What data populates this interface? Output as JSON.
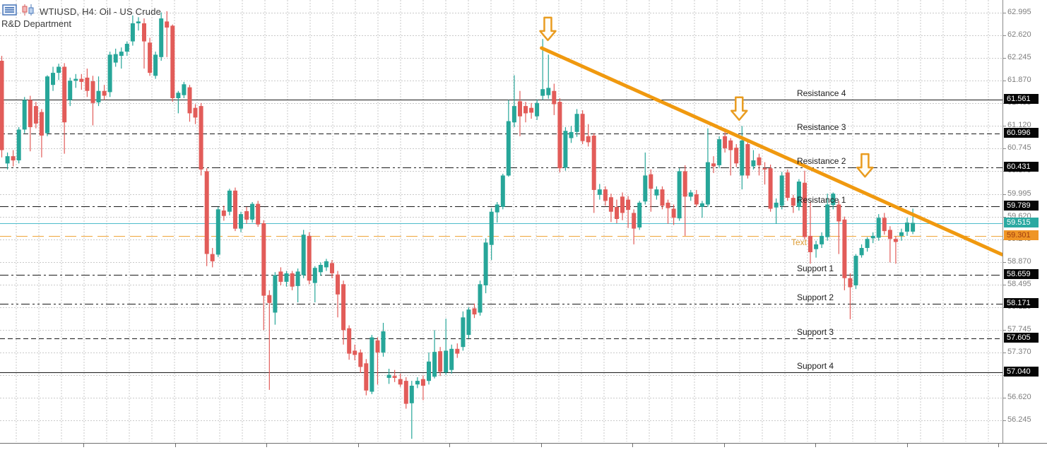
{
  "window": {
    "title": "WTIUSD, H4: Oil - US Crude",
    "subtitle": "R&D Department",
    "toolbar_icons": [
      "list-panel-icon",
      "candlestick-chart-icon"
    ]
  },
  "colors": {
    "background": "#ffffff",
    "grid": "#c9c9c9",
    "candle_up": "#27a699",
    "candle_down": "#e25c59",
    "level_line": "#1a1a1a",
    "axis_text": "#7e7e7e",
    "axis_black_bg": "#060606",
    "axis_black_fg": "#ffffff",
    "current_price_line": "#4fbccb",
    "current_price_bg": "#2aa9a1",
    "current_price_fg": "#ffffff",
    "order_line": "#f0a53a",
    "order_bg": "#ef9526",
    "order_fg": "#a03c10",
    "trendline": "#f0990f",
    "arrow_stroke": "#e99c20",
    "arrow_fill": "#fffdf6",
    "text_annotation": "#dd9c33"
  },
  "price_axis": {
    "ticks": [
      "62.995",
      "62.620",
      "62.245",
      "61.870",
      "61.495",
      "61.120",
      "60.745",
      "60.370",
      "59.995",
      "59.620",
      "59.245",
      "58.870",
      "58.495",
      "58.120",
      "57.745",
      "57.370",
      "56.995",
      "56.620",
      "56.245"
    ],
    "highlighted": [
      {
        "text": "61.561",
        "price": 61.561,
        "kind": "level"
      },
      {
        "text": "60.996",
        "price": 60.996,
        "kind": "level"
      },
      {
        "text": "60.431",
        "price": 60.431,
        "kind": "level"
      },
      {
        "text": "59.789",
        "price": 59.789,
        "kind": "level"
      },
      {
        "text": "59.515",
        "price": 59.515,
        "kind": "current"
      },
      {
        "text": "59.301",
        "price": 59.301,
        "kind": "order"
      },
      {
        "text": "58.659",
        "price": 58.659,
        "kind": "level"
      },
      {
        "text": "58.171",
        "price": 58.171,
        "kind": "level"
      },
      {
        "text": "57.605",
        "price": 57.605,
        "kind": "level"
      },
      {
        "text": "57.040",
        "price": 57.04,
        "kind": "level"
      }
    ]
  },
  "chart_data": {
    "type": "candlestick",
    "symbol": "WTIUSD",
    "timeframe": "H4",
    "description": "Oil - US Crude",
    "grid_step": 0.375,
    "ylim": [
      55.9,
      63.2
    ],
    "current_price": 59.515,
    "levels": [
      {
        "label": "Resistance 4",
        "price": 61.561,
        "style": "solid"
      },
      {
        "label": "Resistance 3",
        "price": 60.996,
        "style": "dash"
      },
      {
        "label": "Resistance 2",
        "price": 60.431,
        "style": "dashdotdot"
      },
      {
        "label": "Resistance 1",
        "price": 59.789,
        "style": "dashdot"
      },
      {
        "label": "Support 1",
        "price": 58.659,
        "style": "dashdot"
      },
      {
        "label": "Support 2",
        "price": 58.171,
        "style": "dashdotdot"
      },
      {
        "label": "Support 3",
        "price": 57.605,
        "style": "dash"
      },
      {
        "label": "Support 4",
        "price": 57.04,
        "style": "solid"
      }
    ],
    "current_price_line": {
      "price": 59.515,
      "style": "solid"
    },
    "order_line": {
      "price": 59.301,
      "style": "dash",
      "label": "Text"
    },
    "trendline": {
      "from": {
        "index": 94.8,
        "price": 62.41
      },
      "to": {
        "index": 175.7,
        "price": 58.99
      }
    },
    "arrows": [
      {
        "index": 95.9,
        "tip_price": 62.54
      },
      {
        "index": 129.5,
        "tip_price": 61.22
      },
      {
        "index": 151.6,
        "tip_price": 60.28
      }
    ],
    "candles": [
      [
        62.2,
        62.28,
        60.6,
        60.72
      ],
      [
        60.5,
        60.68,
        60.4,
        60.62
      ],
      [
        60.62,
        60.72,
        60.45,
        60.55
      ],
      [
        60.55,
        61.1,
        60.5,
        61.06
      ],
      [
        61.06,
        61.6,
        61.0,
        61.55
      ],
      [
        61.55,
        61.62,
        60.7,
        61.1
      ],
      [
        61.45,
        61.52,
        61.08,
        61.16
      ],
      [
        61.35,
        61.4,
        60.6,
        60.96
      ],
      [
        61.0,
        61.96,
        60.95,
        61.94
      ],
      [
        61.8,
        62.1,
        61.7,
        62.0
      ],
      [
        62.0,
        62.15,
        61.88,
        62.1
      ],
      [
        62.1,
        62.16,
        60.66,
        61.18
      ],
      [
        61.55,
        61.92,
        61.45,
        61.87
      ],
      [
        61.87,
        61.98,
        61.75,
        61.9
      ],
      [
        61.9,
        61.98,
        61.72,
        61.85
      ],
      [
        61.92,
        62.07,
        61.6,
        61.7
      ],
      [
        61.86,
        61.95,
        61.13,
        61.5
      ],
      [
        61.51,
        61.94,
        61.45,
        61.7
      ],
      [
        61.7,
        61.8,
        61.55,
        61.62
      ],
      [
        61.68,
        62.35,
        61.6,
        62.3
      ],
      [
        62.17,
        62.4,
        62.1,
        62.31
      ],
      [
        62.28,
        62.42,
        62.07,
        62.35
      ],
      [
        62.35,
        62.52,
        62.28,
        62.48
      ],
      [
        62.52,
        62.95,
        62.45,
        62.82
      ],
      [
        62.82,
        62.92,
        62.7,
        62.85
      ],
      [
        62.82,
        62.9,
        62.07,
        62.52
      ],
      [
        62.5,
        62.58,
        61.95,
        62.0
      ],
      [
        61.95,
        62.35,
        61.9,
        62.3
      ],
      [
        62.26,
        63.0,
        62.2,
        62.9
      ],
      [
        62.85,
        63.02,
        62.26,
        62.75
      ],
      [
        62.78,
        62.8,
        61.52,
        61.58
      ],
      [
        61.58,
        61.7,
        61.33,
        61.67
      ],
      [
        61.63,
        61.85,
        61.58,
        61.81
      ],
      [
        61.76,
        61.8,
        61.19,
        61.33
      ],
      [
        61.42,
        61.48,
        61.15,
        61.26
      ],
      [
        61.45,
        61.5,
        60.3,
        60.4
      ],
      [
        60.37,
        60.42,
        58.8,
        59.0
      ],
      [
        59.0,
        59.1,
        58.78,
        58.88
      ],
      [
        58.99,
        59.78,
        58.95,
        59.74
      ],
      [
        59.72,
        59.8,
        59.55,
        59.63
      ],
      [
        59.7,
        60.08,
        59.64,
        60.05
      ],
      [
        60.05,
        60.1,
        59.38,
        59.42
      ],
      [
        59.42,
        59.7,
        59.36,
        59.66
      ],
      [
        59.71,
        59.78,
        59.5,
        59.57
      ],
      [
        59.57,
        59.86,
        59.52,
        59.83
      ],
      [
        59.83,
        59.88,
        59.45,
        59.49
      ],
      [
        59.51,
        59.56,
        57.74,
        58.31
      ],
      [
        58.32,
        58.4,
        56.75,
        58.19
      ],
      [
        58.03,
        58.7,
        57.83,
        58.65
      ],
      [
        58.71,
        58.78,
        58.48,
        58.54
      ],
      [
        58.54,
        58.72,
        58.46,
        58.68
      ],
      [
        58.68,
        58.72,
        58.4,
        58.46
      ],
      [
        58.47,
        58.76,
        58.2,
        58.71
      ],
      [
        58.65,
        59.4,
        58.6,
        59.32
      ],
      [
        59.3,
        59.36,
        58.5,
        58.56
      ],
      [
        58.52,
        58.8,
        58.2,
        58.77
      ],
      [
        58.7,
        58.86,
        58.64,
        58.82
      ],
      [
        58.78,
        58.92,
        58.72,
        58.88
      ],
      [
        58.85,
        58.9,
        58.6,
        58.68
      ],
      [
        58.66,
        58.72,
        57.95,
        58.33
      ],
      [
        58.5,
        58.56,
        57.5,
        57.74
      ],
      [
        57.77,
        57.82,
        57.25,
        57.35
      ],
      [
        57.4,
        57.5,
        57.24,
        57.33
      ],
      [
        57.37,
        57.42,
        57.03,
        57.13
      ],
      [
        57.19,
        57.26,
        56.66,
        56.74
      ],
      [
        56.72,
        57.66,
        56.68,
        57.62
      ],
      [
        57.57,
        57.62,
        56.84,
        57.37
      ],
      [
        57.37,
        57.86,
        57.3,
        57.72
      ],
      [
        56.95,
        57.1,
        56.85,
        57.0
      ],
      [
        56.98,
        57.08,
        56.88,
        56.95
      ],
      [
        56.93,
        57.02,
        56.8,
        56.84
      ],
      [
        56.9,
        56.96,
        56.44,
        56.52
      ],
      [
        56.53,
        56.9,
        55.94,
        56.82
      ],
      [
        56.84,
        56.96,
        56.78,
        56.9
      ],
      [
        56.93,
        56.99,
        56.58,
        56.82
      ],
      [
        56.9,
        57.37,
        56.84,
        57.22
      ],
      [
        56.97,
        57.74,
        56.94,
        57.38
      ],
      [
        57.39,
        57.46,
        56.98,
        57.05
      ],
      [
        57.04,
        57.93,
        57.0,
        57.4
      ],
      [
        57.08,
        57.5,
        57.02,
        57.43
      ],
      [
        57.43,
        57.52,
        57.28,
        57.35
      ],
      [
        57.46,
        58.05,
        57.4,
        57.95
      ],
      [
        57.66,
        58.12,
        57.6,
        58.08
      ],
      [
        58.1,
        58.18,
        57.94,
        58.0
      ],
      [
        58.03,
        58.56,
        57.98,
        58.5
      ],
      [
        58.48,
        59.26,
        58.35,
        59.19
      ],
      [
        59.15,
        59.76,
        58.9,
        59.7
      ],
      [
        59.69,
        59.86,
        59.52,
        59.82
      ],
      [
        59.78,
        60.33,
        59.74,
        60.3
      ],
      [
        60.3,
        61.55,
        60.28,
        61.2
      ],
      [
        61.18,
        61.96,
        61.1,
        61.45
      ],
      [
        61.53,
        61.7,
        60.95,
        61.28
      ],
      [
        61.45,
        61.52,
        61.18,
        61.33
      ],
      [
        61.42,
        61.5,
        61.24,
        61.34
      ],
      [
        61.28,
        61.56,
        61.22,
        61.5
      ],
      [
        61.62,
        62.56,
        61.55,
        61.73
      ],
      [
        61.63,
        62.3,
        61.57,
        61.75
      ],
      [
        61.7,
        61.82,
        61.3,
        61.48
      ],
      [
        61.52,
        61.58,
        60.35,
        60.42
      ],
      [
        60.43,
        61.1,
        60.38,
        61.04
      ],
      [
        60.92,
        61.12,
        60.84,
        61.02
      ],
      [
        61.02,
        61.4,
        60.94,
        61.32
      ],
      [
        61.32,
        61.38,
        60.82,
        60.87
      ],
      [
        60.95,
        61.15,
        60.78,
        60.85
      ],
      [
        60.96,
        61.0,
        59.68,
        60.06
      ],
      [
        59.98,
        60.16,
        59.9,
        60.07
      ],
      [
        60.07,
        60.12,
        59.8,
        59.88
      ],
      [
        59.94,
        60.0,
        59.53,
        59.7
      ],
      [
        59.78,
        59.9,
        59.51,
        59.58
      ],
      [
        59.95,
        60.02,
        59.56,
        59.68
      ],
      [
        59.9,
        59.96,
        59.43,
        59.73
      ],
      [
        59.68,
        59.74,
        59.16,
        59.42
      ],
      [
        59.44,
        59.88,
        59.4,
        59.85
      ],
      [
        59.87,
        60.68,
        59.82,
        60.3
      ],
      [
        60.32,
        60.4,
        59.7,
        60.08
      ],
      [
        59.97,
        60.12,
        59.9,
        60.07
      ],
      [
        60.07,
        60.12,
        59.74,
        59.8
      ],
      [
        59.85,
        59.9,
        59.5,
        59.76
      ],
      [
        59.75,
        59.82,
        59.48,
        59.6
      ],
      [
        59.59,
        60.42,
        59.55,
        60.37
      ],
      [
        60.37,
        60.47,
        59.3,
        59.95
      ],
      [
        59.95,
        60.06,
        59.88,
        60.02
      ],
      [
        59.99,
        60.06,
        59.78,
        59.82
      ],
      [
        59.78,
        59.88,
        59.6,
        59.84
      ],
      [
        59.82,
        61.08,
        59.78,
        60.52
      ],
      [
        60.5,
        60.62,
        60.34,
        60.45
      ],
      [
        60.47,
        60.95,
        60.42,
        60.9
      ],
      [
        60.95,
        61.08,
        60.68,
        60.75
      ],
      [
        60.88,
        60.92,
        60.3,
        60.72
      ],
      [
        60.76,
        60.82,
        60.44,
        60.5
      ],
      [
        60.3,
        61.12,
        60.07,
        60.88
      ],
      [
        60.82,
        60.9,
        60.25,
        60.3
      ],
      [
        60.45,
        60.72,
        60.4,
        60.55
      ],
      [
        60.6,
        60.66,
        60.3,
        60.47
      ],
      [
        60.42,
        60.52,
        60.15,
        60.4
      ],
      [
        60.42,
        60.48,
        59.7,
        59.75
      ],
      [
        59.77,
        59.92,
        59.5,
        59.85
      ],
      [
        59.8,
        60.36,
        59.74,
        60.3
      ],
      [
        60.35,
        60.4,
        59.88,
        59.93
      ],
      [
        59.93,
        59.98,
        59.68,
        59.8
      ],
      [
        59.78,
        60.24,
        59.72,
        60.2
      ],
      [
        60.18,
        60.38,
        59.24,
        59.28
      ],
      [
        59.3,
        59.87,
        58.84,
        59.03
      ],
      [
        59.08,
        59.22,
        58.94,
        59.16
      ],
      [
        59.16,
        59.36,
        59.1,
        59.3
      ],
      [
        59.28,
        60.0,
        59.22,
        59.82
      ],
      [
        59.81,
        60.02,
        59.74,
        60.0
      ],
      [
        59.82,
        59.88,
        59.0,
        59.54
      ],
      [
        59.57,
        59.62,
        58.4,
        58.6
      ],
      [
        58.6,
        58.68,
        57.92,
        58.45
      ],
      [
        58.48,
        59.0,
        58.42,
        58.97
      ],
      [
        58.98,
        59.16,
        58.94,
        59.1
      ],
      [
        59.1,
        59.28,
        59.04,
        59.25
      ],
      [
        59.26,
        59.36,
        59.18,
        59.3
      ],
      [
        59.27,
        59.66,
        59.22,
        59.6
      ],
      [
        59.6,
        59.68,
        59.32,
        59.38
      ],
      [
        59.4,
        59.46,
        58.86,
        59.25
      ],
      [
        59.25,
        59.3,
        58.84,
        59.2
      ],
      [
        59.3,
        59.42,
        59.22,
        59.36
      ],
      [
        59.37,
        59.6,
        59.3,
        59.52
      ],
      [
        59.37,
        59.75,
        59.33,
        59.515
      ]
    ]
  }
}
